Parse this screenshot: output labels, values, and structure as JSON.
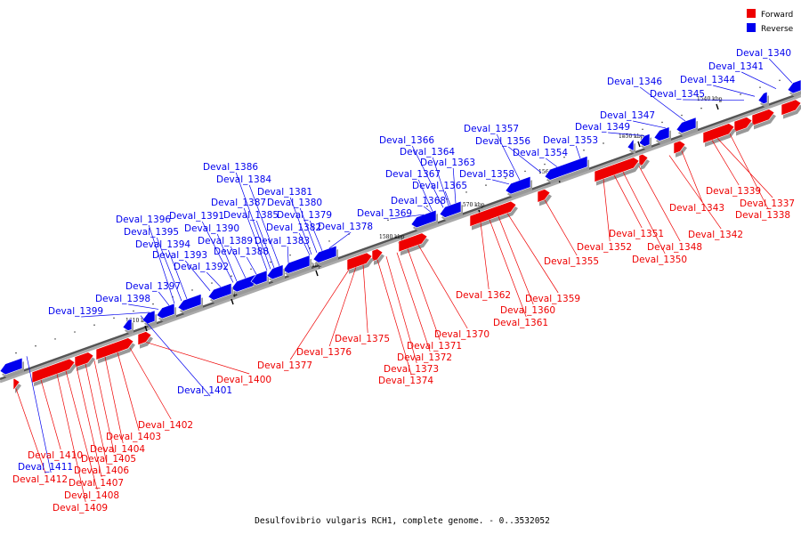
{
  "legend": {
    "forward": {
      "label": "Forward",
      "color": "#ee0000"
    },
    "reverse": {
      "label": "Reverse",
      "color": "#0000ee"
    }
  },
  "caption": "Desulfovibrio vulgaris RCH1, complete genome. - 0..3532052",
  "ticks": [
    "1540 kbp",
    "1550 kbp",
    "1560 kbp",
    "1570 kbp",
    "1580 kbp",
    "1590 kbp",
    "1600 kbp",
    "1610 kbp"
  ],
  "genes": [
    {
      "name": "Deval_1340",
      "strand": "reverse"
    },
    {
      "name": "Deval_1341",
      "strand": "reverse"
    },
    {
      "name": "Deval_1344",
      "strand": "reverse"
    },
    {
      "name": "Deval_1345",
      "strand": "reverse"
    },
    {
      "name": "Deval_1346",
      "strand": "reverse"
    },
    {
      "name": "Deval_1347",
      "strand": "reverse"
    },
    {
      "name": "Deval_1349",
      "strand": "reverse"
    },
    {
      "name": "Deval_1353",
      "strand": "reverse"
    },
    {
      "name": "Deval_1354",
      "strand": "reverse"
    },
    {
      "name": "Deval_1356",
      "strand": "reverse"
    },
    {
      "name": "Deval_1357",
      "strand": "reverse"
    },
    {
      "name": "Deval_1358",
      "strand": "reverse"
    },
    {
      "name": "Deval_1363",
      "strand": "reverse"
    },
    {
      "name": "Deval_1364",
      "strand": "reverse"
    },
    {
      "name": "Deval_1365",
      "strand": "reverse"
    },
    {
      "name": "Deval_1366",
      "strand": "reverse"
    },
    {
      "name": "Deval_1367",
      "strand": "reverse"
    },
    {
      "name": "Deval_1368",
      "strand": "reverse"
    },
    {
      "name": "Deval_1369",
      "strand": "reverse"
    },
    {
      "name": "Deval_1378",
      "strand": "reverse"
    },
    {
      "name": "Deval_1379",
      "strand": "reverse"
    },
    {
      "name": "Deval_1380",
      "strand": "reverse"
    },
    {
      "name": "Deval_1381",
      "strand": "reverse"
    },
    {
      "name": "Deval_1382",
      "strand": "reverse"
    },
    {
      "name": "Deval_1383",
      "strand": "reverse"
    },
    {
      "name": "Deval_1384",
      "strand": "reverse"
    },
    {
      "name": "Deval_1385",
      "strand": "reverse"
    },
    {
      "name": "Deval_1386",
      "strand": "reverse"
    },
    {
      "name": "Deval_1387",
      "strand": "reverse"
    },
    {
      "name": "Deval_1388",
      "strand": "reverse"
    },
    {
      "name": "Deval_1389",
      "strand": "reverse"
    },
    {
      "name": "Deval_1390",
      "strand": "reverse"
    },
    {
      "name": "Deval_1391",
      "strand": "reverse"
    },
    {
      "name": "Deval_1392",
      "strand": "reverse"
    },
    {
      "name": "Deval_1393",
      "strand": "reverse"
    },
    {
      "name": "Deval_1394",
      "strand": "reverse"
    },
    {
      "name": "Deval_1395",
      "strand": "reverse"
    },
    {
      "name": "Deval_1396",
      "strand": "reverse"
    },
    {
      "name": "Deval_1397",
      "strand": "reverse"
    },
    {
      "name": "Deval_1398",
      "strand": "reverse"
    },
    {
      "name": "Deval_1399",
      "strand": "reverse"
    },
    {
      "name": "Deval_1401",
      "strand": "reverse"
    },
    {
      "name": "Deval_1411",
      "strand": "reverse"
    },
    {
      "name": "Deval_1337",
      "strand": "forward"
    },
    {
      "name": "Deval_1338",
      "strand": "forward"
    },
    {
      "name": "Deval_1339",
      "strand": "forward"
    },
    {
      "name": "Deval_1342",
      "strand": "forward"
    },
    {
      "name": "Deval_1343",
      "strand": "forward"
    },
    {
      "name": "Deval_1348",
      "strand": "forward"
    },
    {
      "name": "Deval_1350",
      "strand": "forward"
    },
    {
      "name": "Deval_1351",
      "strand": "forward"
    },
    {
      "name": "Deval_1352",
      "strand": "forward"
    },
    {
      "name": "Deval_1355",
      "strand": "forward"
    },
    {
      "name": "Deval_1359",
      "strand": "forward"
    },
    {
      "name": "Deval_1360",
      "strand": "forward"
    },
    {
      "name": "Deval_1361",
      "strand": "forward"
    },
    {
      "name": "Deval_1362",
      "strand": "forward"
    },
    {
      "name": "Deval_1370",
      "strand": "forward"
    },
    {
      "name": "Deval_1371",
      "strand": "forward"
    },
    {
      "name": "Deval_1372",
      "strand": "forward"
    },
    {
      "name": "Deval_1373",
      "strand": "forward"
    },
    {
      "name": "Deval_1374",
      "strand": "forward"
    },
    {
      "name": "Deval_1375",
      "strand": "forward"
    },
    {
      "name": "Deval_1376",
      "strand": "forward"
    },
    {
      "name": "Deval_1377",
      "strand": "forward"
    },
    {
      "name": "Deval_1400",
      "strand": "forward"
    },
    {
      "name": "Deval_1402",
      "strand": "forward"
    },
    {
      "name": "Deval_1403",
      "strand": "forward"
    },
    {
      "name": "Deval_1404",
      "strand": "forward"
    },
    {
      "name": "Deval_1405",
      "strand": "forward"
    },
    {
      "name": "Deval_1406",
      "strand": "forward"
    },
    {
      "name": "Deval_1407",
      "strand": "forward"
    },
    {
      "name": "Deval_1408",
      "strand": "forward"
    },
    {
      "name": "Deval_1409",
      "strand": "forward"
    },
    {
      "name": "Deval_1410",
      "strand": "forward"
    },
    {
      "name": "Deval_1412",
      "strand": "forward"
    }
  ]
}
